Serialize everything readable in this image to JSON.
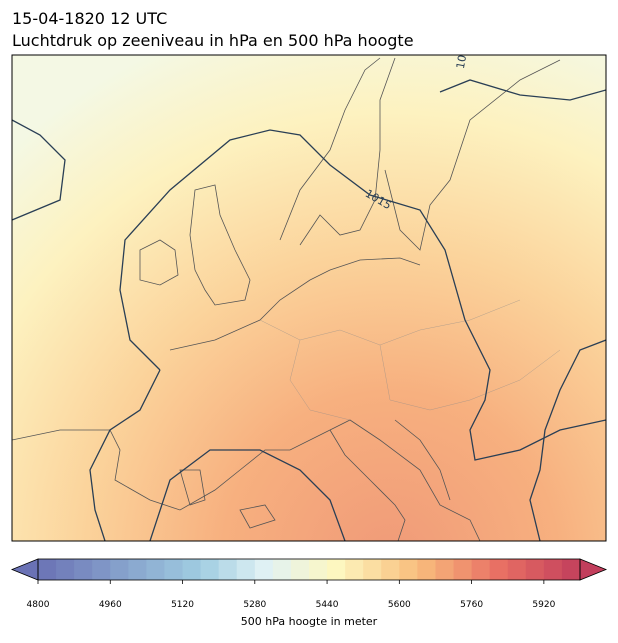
{
  "header": {
    "title": "15-04-1820 12 UTC",
    "subtitle": "Luchtdruk op zeeniveau in hPa en 500 hPa hoogte"
  },
  "map": {
    "isobar_labels": [
      "1015",
      "10"
    ]
  },
  "colorbar": {
    "label": "500 hPa hoogte in meter",
    "lim": [
      4800,
      6000
    ],
    "step": 40,
    "ticks": [
      4800,
      4960,
      5120,
      5280,
      5440,
      5600,
      5760,
      5920
    ]
  }
}
